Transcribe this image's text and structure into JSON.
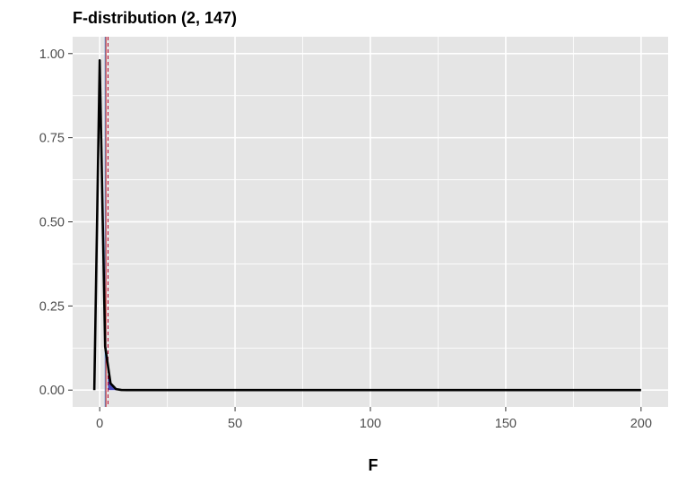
{
  "chart_data": {
    "type": "line",
    "title": "F-distribution (2, 147)",
    "xlabel": "F",
    "ylabel": "",
    "xlim": [
      -10,
      210
    ],
    "ylim": [
      -0.05,
      1.05
    ],
    "x_ticks": [
      0,
      50,
      100,
      150,
      200
    ],
    "x_tick_labels": [
      "0",
      "50",
      "100",
      "150",
      "200"
    ],
    "y_ticks": [
      0,
      0.25,
      0.5,
      0.75,
      1.0
    ],
    "y_tick_labels": [
      "0.00",
      "0.25",
      "0.50",
      "0.75",
      "1.00"
    ],
    "grid": true,
    "legend": "none",
    "background_color": "#e5e5e5",
    "grid_color": "#ffffff",
    "series": [
      {
        "color": "#000000",
        "x": [
          -2,
          0,
          2,
          4,
          6,
          8,
          10,
          15,
          20,
          30,
          50,
          100,
          150,
          200
        ],
        "y": [
          0,
          0.98,
          0.13,
          0.02,
          0.003,
          0.0005,
          0.0001,
          0,
          0,
          0,
          0,
          0,
          0,
          0
        ]
      }
    ],
    "shaded_area": {
      "color": "#2b2bb0",
      "x": [
        3.06,
        4,
        5,
        6,
        7,
        8,
        10
      ],
      "y": [
        0.047,
        0.02,
        0.008,
        0.003,
        0.001,
        0.0005,
        0.0001
      ]
    },
    "vlines": [
      {
        "x": 2.0,
        "color": "#4a90d9",
        "style": "solid"
      },
      {
        "x": 2.3,
        "color": "#cc2222",
        "style": "solid"
      },
      {
        "x": 3.06,
        "color": "#b5002a",
        "style": "dashed"
      }
    ]
  }
}
